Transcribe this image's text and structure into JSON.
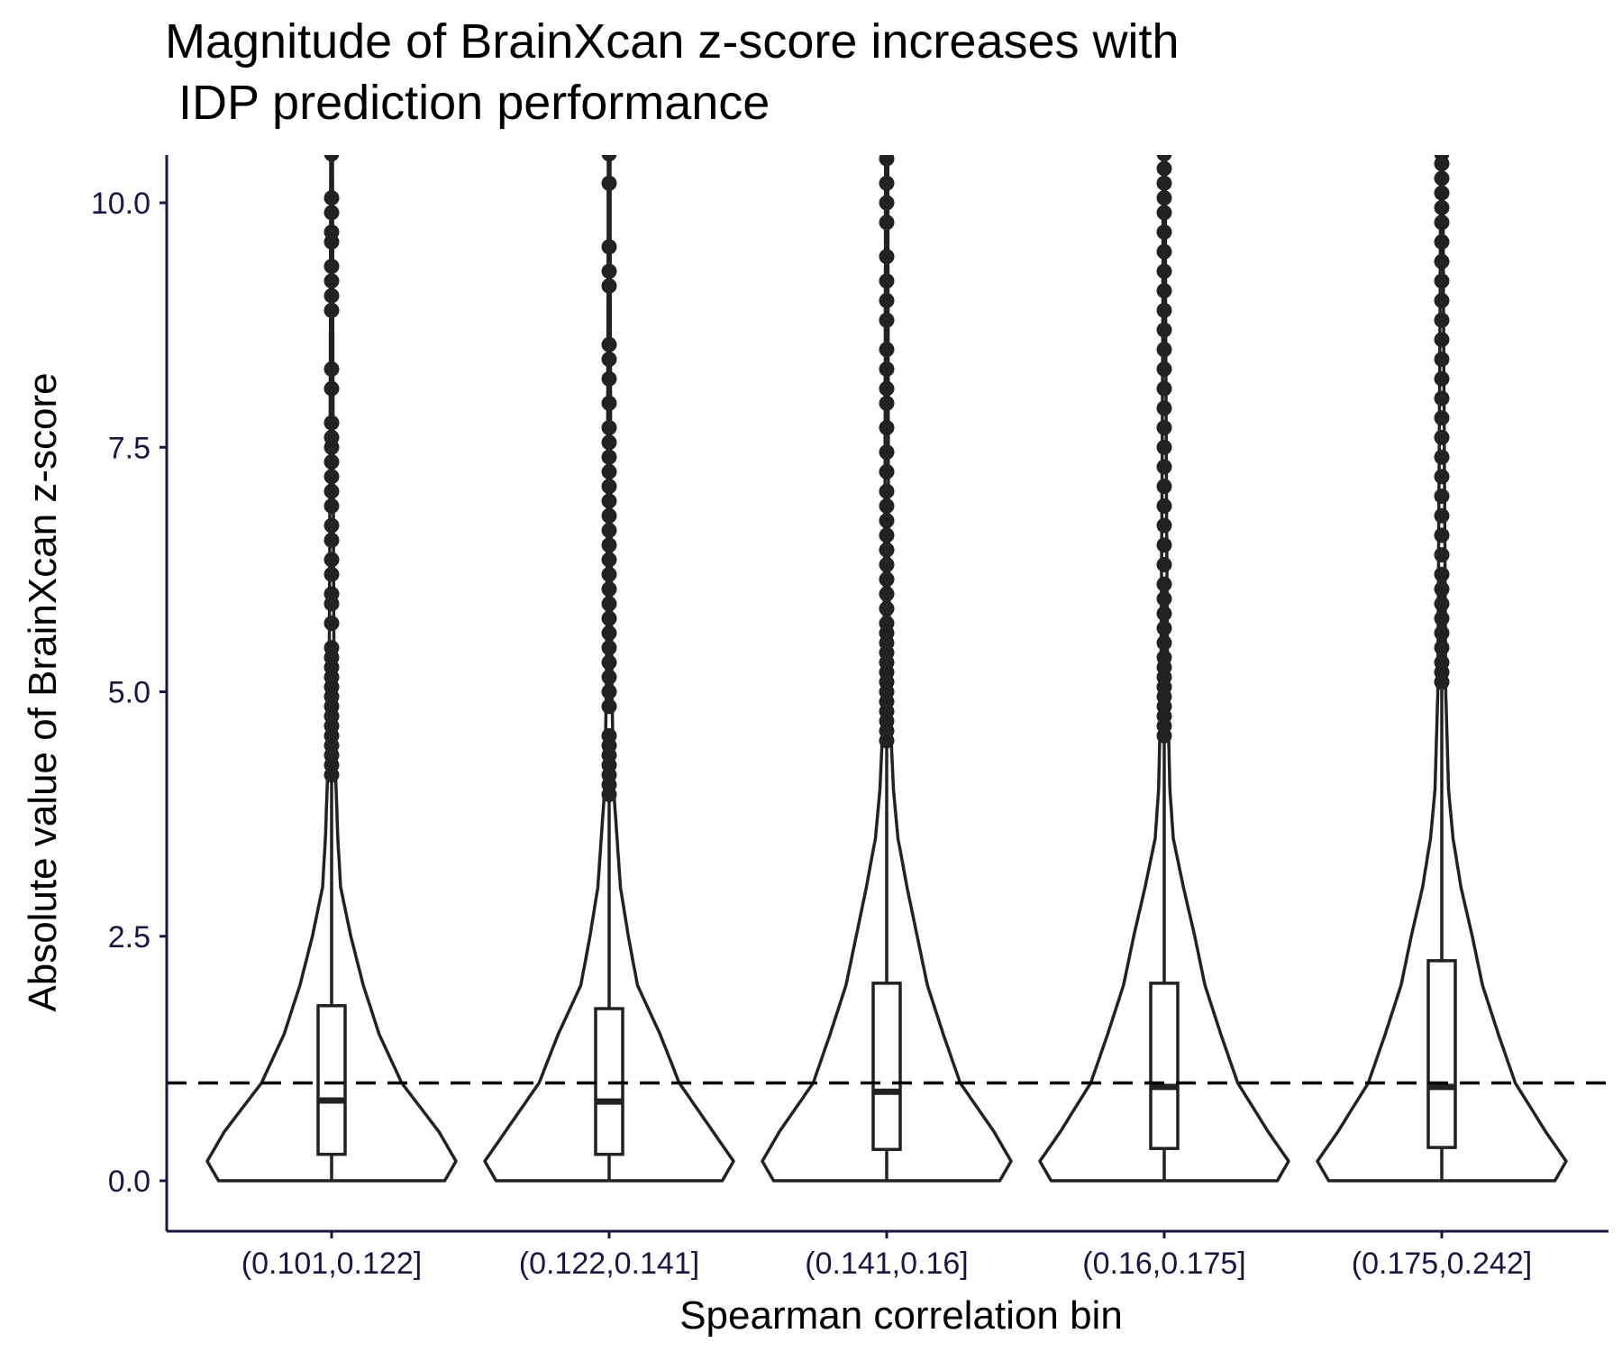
{
  "chart_data": {
    "type": "violin",
    "title_lines": [
      "Magnitude of BrainXcan z-score increases with",
      " IDP prediction performance"
    ],
    "xlabel": "Spearman correlation bin",
    "ylabel": "Absolute value of BrainXcan z-score",
    "ylim": [
      -0.5,
      10.5
    ],
    "y_ticks": [
      "0.0",
      "2.5",
      "5.0",
      "7.5",
      "10.0"
    ],
    "y_tick_values": [
      0,
      2.5,
      5,
      7.5,
      10
    ],
    "reference_line": {
      "y": 1.0,
      "style": "dashed"
    },
    "grid": false,
    "colors": {
      "axis": "#1b1446",
      "ink": "#222222",
      "fill": "#ffffff"
    },
    "categories": [
      "(0.101,0.122]",
      "(0.122,0.141]",
      "(0.141,0.16]",
      "(0.16,0.175]",
      "(0.175,0.242]"
    ],
    "boxes": [
      {
        "q1": 0.27,
        "median": 0.82,
        "q3": 1.79,
        "whisker_low": 0.0,
        "whisker_high": 4.1
      },
      {
        "q1": 0.27,
        "median": 0.81,
        "q3": 1.76,
        "whisker_low": 0.0,
        "whisker_high": 3.95
      },
      {
        "q1": 0.32,
        "median": 0.91,
        "q3": 2.02,
        "whisker_low": 0.0,
        "whisker_high": 4.5
      },
      {
        "q1": 0.33,
        "median": 0.96,
        "q3": 2.02,
        "whisker_low": 0.0,
        "whisker_high": 4.55
      },
      {
        "q1": 0.34,
        "median": 0.96,
        "q3": 2.25,
        "whisker_low": 0.0,
        "whisker_high": 5.1
      }
    ],
    "violin_widths": [
      [
        [
          0.0,
          1.0
        ],
        [
          0.2,
          1.1
        ],
        [
          0.5,
          0.95
        ],
        [
          1.0,
          0.62
        ],
        [
          1.5,
          0.42
        ],
        [
          2.0,
          0.28
        ],
        [
          2.5,
          0.17
        ],
        [
          3.0,
          0.08
        ],
        [
          3.5,
          0.055
        ],
        [
          4.0,
          0.04
        ],
        [
          4.5,
          0.025
        ],
        [
          5.5,
          0.02
        ],
        [
          7.0,
          0.015
        ],
        [
          9.0,
          0.01
        ],
        [
          10.5,
          0.008
        ]
      ],
      [
        [
          0.0,
          1.0
        ],
        [
          0.2,
          1.1
        ],
        [
          0.5,
          0.92
        ],
        [
          1.0,
          0.62
        ],
        [
          1.5,
          0.45
        ],
        [
          2.0,
          0.25
        ],
        [
          2.5,
          0.17
        ],
        [
          3.0,
          0.1
        ],
        [
          3.5,
          0.07
        ],
        [
          4.0,
          0.04
        ],
        [
          5.0,
          0.025
        ],
        [
          7.0,
          0.015
        ],
        [
          9.0,
          0.01
        ],
        [
          10.5,
          0.008
        ]
      ],
      [
        [
          0.0,
          1.0
        ],
        [
          0.2,
          1.1
        ],
        [
          0.5,
          0.95
        ],
        [
          1.0,
          0.65
        ],
        [
          1.5,
          0.5
        ],
        [
          2.0,
          0.36
        ],
        [
          2.5,
          0.27
        ],
        [
          3.0,
          0.18
        ],
        [
          3.5,
          0.1
        ],
        [
          4.0,
          0.06
        ],
        [
          4.5,
          0.04
        ],
        [
          5.5,
          0.025
        ],
        [
          7.0,
          0.015
        ],
        [
          9.0,
          0.012
        ],
        [
          10.5,
          0.01
        ]
      ],
      [
        [
          0.0,
          1.0
        ],
        [
          0.2,
          1.1
        ],
        [
          0.5,
          0.92
        ],
        [
          1.0,
          0.65
        ],
        [
          1.5,
          0.5
        ],
        [
          2.0,
          0.36
        ],
        [
          2.5,
          0.27
        ],
        [
          3.0,
          0.17
        ],
        [
          3.5,
          0.08
        ],
        [
          4.0,
          0.05
        ],
        [
          5.0,
          0.03
        ],
        [
          7.0,
          0.02
        ],
        [
          9.0,
          0.012
        ],
        [
          10.5,
          0.01
        ]
      ],
      [
        [
          0.0,
          1.0
        ],
        [
          0.2,
          1.1
        ],
        [
          0.5,
          0.92
        ],
        [
          1.0,
          0.65
        ],
        [
          1.5,
          0.5
        ],
        [
          2.0,
          0.36
        ],
        [
          2.5,
          0.27
        ],
        [
          3.0,
          0.17
        ],
        [
          3.5,
          0.1
        ],
        [
          4.0,
          0.06
        ],
        [
          5.0,
          0.035
        ],
        [
          7.0,
          0.025
        ],
        [
          9.0,
          0.015
        ],
        [
          10.5,
          0.01
        ]
      ]
    ],
    "outliers": [
      [
        4.15,
        4.25,
        4.35,
        4.45,
        4.55,
        4.65,
        4.75,
        4.85,
        4.95,
        5.05,
        5.15,
        5.25,
        5.35,
        5.45,
        5.7,
        5.9,
        6.0,
        6.2,
        6.35,
        6.55,
        6.7,
        6.9,
        7.05,
        7.2,
        7.35,
        7.5,
        7.6,
        7.75,
        8.1,
        8.3,
        8.9,
        9.05,
        9.2,
        9.35,
        9.6,
        9.7,
        9.9,
        10.05,
        10.5
      ],
      [
        3.95,
        4.05,
        4.15,
        4.25,
        4.35,
        4.45,
        4.55,
        4.85,
        5.0,
        5.15,
        5.3,
        5.45,
        5.6,
        5.75,
        5.9,
        6.05,
        6.2,
        6.35,
        6.5,
        6.65,
        6.8,
        6.95,
        7.1,
        7.25,
        7.4,
        7.55,
        7.7,
        7.95,
        8.2,
        8.4,
        8.55,
        9.15,
        9.3,
        9.55,
        10.2,
        10.5
      ],
      [
        4.5,
        4.6,
        4.7,
        4.8,
        4.9,
        5.0,
        5.1,
        5.2,
        5.3,
        5.4,
        5.5,
        5.6,
        5.7,
        5.85,
        6.0,
        6.15,
        6.3,
        6.45,
        6.6,
        6.75,
        6.9,
        7.05,
        7.25,
        7.45,
        7.7,
        7.95,
        8.1,
        8.3,
        8.5,
        8.8,
        9.0,
        9.2,
        9.45,
        9.8,
        10.0,
        10.2,
        10.45
      ],
      [
        4.55,
        4.65,
        4.75,
        4.85,
        4.95,
        5.05,
        5.15,
        5.25,
        5.35,
        5.5,
        5.65,
        5.8,
        5.95,
        6.1,
        6.3,
        6.5,
        6.7,
        6.9,
        7.1,
        7.3,
        7.5,
        7.7,
        7.9,
        8.1,
        8.3,
        8.5,
        8.7,
        8.9,
        9.1,
        9.3,
        9.5,
        9.7,
        9.9,
        10.05,
        10.2,
        10.35,
        10.5
      ],
      [
        5.1,
        5.2,
        5.3,
        5.45,
        5.6,
        5.75,
        5.9,
        6.05,
        6.2,
        6.4,
        6.6,
        6.8,
        7.0,
        7.2,
        7.4,
        7.6,
        7.8,
        8.0,
        8.2,
        8.4,
        8.6,
        8.8,
        9.0,
        9.2,
        9.4,
        9.6,
        9.8,
        9.95,
        10.1,
        10.25,
        10.4,
        10.5
      ]
    ]
  }
}
